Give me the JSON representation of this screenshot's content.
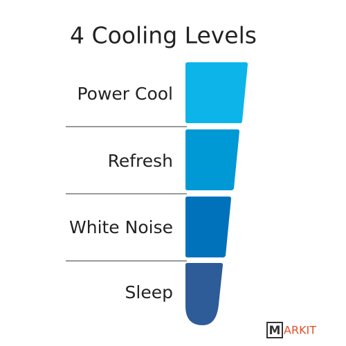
{
  "header": {
    "title": "4 Cooling Levels"
  },
  "levels": [
    {
      "label": "Power Cool"
    },
    {
      "label": "Refresh"
    },
    {
      "label": "White Noise"
    },
    {
      "label": "Sleep"
    }
  ],
  "watermark": {
    "box": "M",
    "rest": "ARKIT"
  }
}
